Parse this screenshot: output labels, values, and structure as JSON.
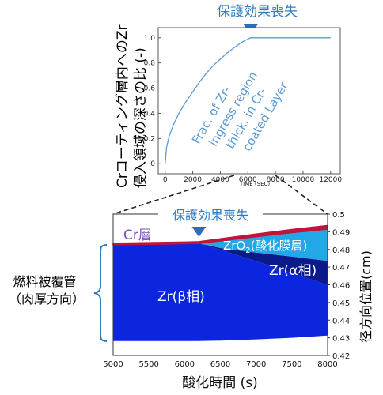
{
  "colors": {
    "accent": "#2e7bc4",
    "top_line": "#5b9bd5",
    "zr_beta": "#0c26e0",
    "zr_alpha": "#0a1a8a",
    "oxide": "#22a7e8",
    "cr_layer": "#c0143c",
    "cr_label": "#7a4fb0",
    "marker": "#2a6ebf"
  },
  "annotation": {
    "label": "保護効果喪失"
  },
  "chart_data": [
    {
      "type": "line",
      "title": "",
      "xlabel": "TIME (SEC)",
      "ylabel": "Crコーティング層内へのZr侵入領域の深さの比 (-)",
      "in_plot_label": "Frac. of Zr-ingress region thick. in Cr-coated Layer",
      "xlim": [
        -500,
        12700
      ],
      "ylim": [
        -0.08,
        1.08
      ],
      "xticks": [
        0,
        2000,
        4000,
        6000,
        8000,
        10000,
        12000
      ],
      "yticks": [
        0,
        0.2,
        0.4,
        0.6,
        0.8,
        1.0
      ],
      "ytick_labels": [
        "0",
        "0.2",
        "0.4",
        "0.6",
        "0.8",
        "1.0"
      ],
      "x": [
        0,
        100,
        300,
        600,
        1000,
        1500,
        2000,
        2500,
        3000,
        3500,
        4000,
        4500,
        5000,
        5500,
        6000,
        6200,
        12000
      ],
      "y": [
        0.0,
        0.13,
        0.22,
        0.31,
        0.4,
        0.49,
        0.57,
        0.65,
        0.72,
        0.78,
        0.83,
        0.88,
        0.92,
        0.96,
        0.99,
        1.0,
        1.0
      ],
      "annotation_x": 6200
    },
    {
      "type": "area",
      "title": "",
      "xlabel": "酸化時間 (s)",
      "ylabel_left": "燃料被覆管（肉厚方向）",
      "ylabel": "径方向位置(cm)",
      "xlim": [
        5000,
        8000
      ],
      "ylim": [
        0.42,
        0.5
      ],
      "xticks": [
        5000,
        5500,
        6000,
        6500,
        7000,
        7500,
        8000
      ],
      "yticks": [
        0.42,
        0.43,
        0.44,
        0.45,
        0.46,
        0.47,
        0.48,
        0.49,
        0.5
      ],
      "ytick_labels": [
        "0.42",
        "0.43",
        "0.44",
        "0.45",
        "0.46",
        "0.47",
        "0.48",
        "0.49",
        "0.5"
      ],
      "annotation_x": 6200,
      "regions": [
        {
          "name": "Cr層",
          "label": "Cr層"
        },
        {
          "name": "ZrO2(酸化膜層)",
          "label_main": "ZrO",
          "label_sub": "2",
          "label_tail": "(酸化膜層)"
        },
        {
          "name": "Zr(α相)",
          "label": "Zr(α相)"
        },
        {
          "name": "Zr(β相)",
          "label": "Zr(β相)"
        }
      ],
      "x": [
        5000,
        5500,
        6000,
        6200,
        6500,
        7000,
        7500,
        8000
      ],
      "cr_top": [
        0.4835,
        0.4838,
        0.4842,
        0.4844,
        0.486,
        0.4887,
        0.4913,
        0.4935
      ],
      "cr_bottom": [
        0.4827,
        0.4829,
        0.4833,
        0.4835,
        0.4848,
        0.4872,
        0.4895,
        0.4915
      ],
      "oxide_bottom": [
        0.4827,
        0.4829,
        0.4833,
        0.4835,
        0.4808,
        0.4782,
        0.476,
        0.4735
      ],
      "alpha_bottom": [
        0.4827,
        0.4829,
        0.4833,
        0.4835,
        0.4798,
        0.4733,
        0.4668,
        0.4598
      ],
      "beta_bottom": [
        0.4282,
        0.4282,
        0.4282,
        0.4282,
        0.4284,
        0.4291,
        0.43,
        0.4313
      ]
    }
  ]
}
